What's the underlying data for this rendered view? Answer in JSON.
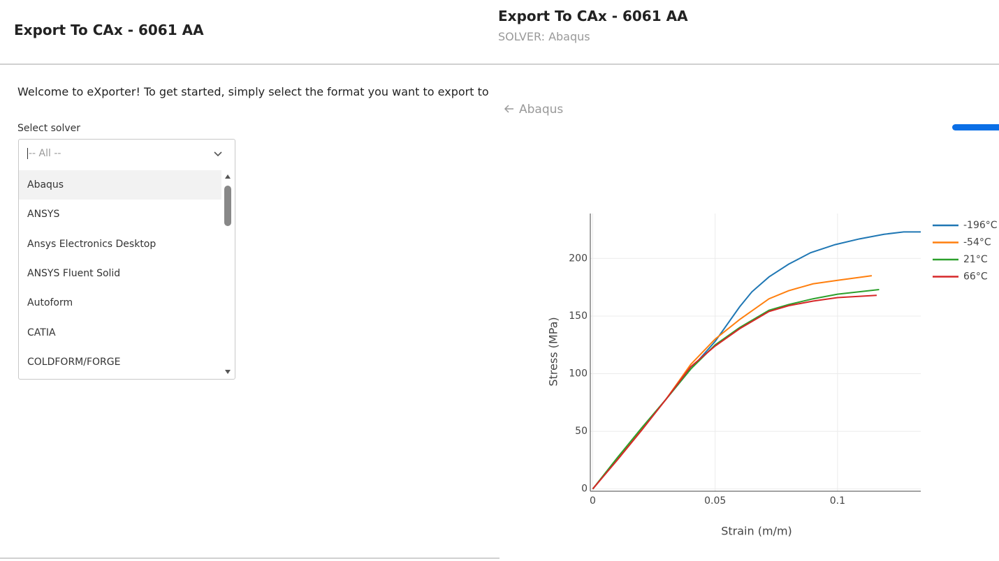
{
  "left_panel": {
    "title": "Export To CAx - 6061 AA",
    "welcome": "Welcome to eXporter! To get started, simply select the format you want to export to",
    "select_label": "Select solver",
    "placeholder": "-- All --",
    "options": [
      "Abaqus",
      "ANSYS",
      "Ansys Electronics Desktop",
      "ANSYS Fluent Solid",
      "Autoform",
      "CATIA",
      "COLDFORM/FORGE"
    ]
  },
  "right_panel": {
    "title": "Export To CAx - 6061 AA",
    "subtitle": "SOLVER: Abaqus",
    "back_link": "Abaqus"
  },
  "chart_data": {
    "type": "line",
    "x_label": "Strain (m/m)",
    "y_label": "Stress (MPa)",
    "xlim": [
      -0.001,
      0.134
    ],
    "ylim": [
      -2,
      239
    ],
    "xticks": [
      0,
      0.05,
      0.1
    ],
    "yticks": [
      0,
      50,
      100,
      150,
      200
    ],
    "grid": true,
    "legend": "right",
    "series": [
      {
        "name": "-196°C",
        "color": "#1f77b4",
        "x": [
          0,
          0.01,
          0.02,
          0.03,
          0.04,
          0.05,
          0.06,
          0.065,
          0.072,
          0.08,
          0.089,
          0.099,
          0.109,
          0.119,
          0.127,
          0.134
        ],
        "values": [
          0,
          26,
          52,
          78,
          104,
          128,
          158,
          171,
          184,
          195,
          205,
          212,
          217,
          221,
          223,
          223
        ]
      },
      {
        "name": "-54°C",
        "color": "#ff7f0e",
        "x": [
          0,
          0.01,
          0.02,
          0.03,
          0.04,
          0.05,
          0.06,
          0.072,
          0.08,
          0.09,
          0.1,
          0.114
        ],
        "values": [
          0,
          26,
          52,
          78,
          108,
          130,
          147,
          165,
          172,
          178,
          181,
          185
        ]
      },
      {
        "name": "21°C",
        "color": "#2ca02c",
        "x": [
          0,
          0.01,
          0.02,
          0.03,
          0.04,
          0.05,
          0.06,
          0.072,
          0.08,
          0.09,
          0.1,
          0.117
        ],
        "values": [
          0,
          27,
          53,
          78,
          104,
          125,
          140,
          155,
          160,
          165,
          169,
          173
        ]
      },
      {
        "name": "66°C",
        "color": "#d62728",
        "x": [
          0,
          0.01,
          0.02,
          0.03,
          0.04,
          0.05,
          0.06,
          0.072,
          0.08,
          0.09,
          0.1,
          0.116
        ],
        "values": [
          0,
          25,
          51,
          78,
          106,
          124,
          139,
          154,
          159,
          163,
          166,
          168
        ]
      }
    ]
  }
}
